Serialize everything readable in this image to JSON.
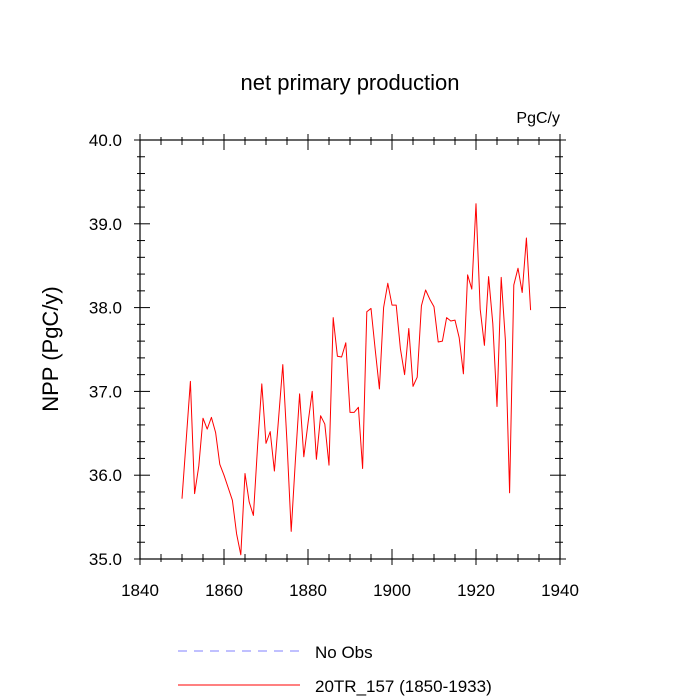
{
  "chart_data": {
    "type": "line",
    "title": "net primary production",
    "units_label": "PgC/y",
    "ylabel": "NPP  (PgC/y)",
    "xlabel": "",
    "xlim": [
      1840,
      1940
    ],
    "ylim": [
      35.0,
      40.0
    ],
    "x_ticks": [
      1840,
      1860,
      1880,
      1900,
      1920,
      1940
    ],
    "x_tick_labels": [
      "1840",
      "1860",
      "1880",
      "1900",
      "1920",
      "1940"
    ],
    "y_ticks": [
      35.0,
      36.0,
      37.0,
      38.0,
      39.0,
      40.0
    ],
    "y_tick_labels": [
      "35.0",
      "36.0",
      "37.0",
      "38.0",
      "39.0",
      "40.0"
    ],
    "legend": [
      {
        "label": "No Obs",
        "color": "#8080ff",
        "style": "dashed"
      },
      {
        "label": "20TR_157 (1850-1933)",
        "color": "#ff0000",
        "style": "solid"
      }
    ],
    "series": [
      {
        "name": "20TR_157 (1850-1933)",
        "color": "#ff0000",
        "x": [
          1850,
          1851,
          1852,
          1853,
          1854,
          1855,
          1856,
          1857,
          1858,
          1859,
          1860,
          1861,
          1862,
          1863,
          1864,
          1865,
          1866,
          1867,
          1868,
          1869,
          1870,
          1871,
          1872,
          1873,
          1874,
          1875,
          1876,
          1877,
          1878,
          1879,
          1880,
          1881,
          1882,
          1883,
          1884,
          1885,
          1886,
          1887,
          1888,
          1889,
          1890,
          1891,
          1892,
          1893,
          1894,
          1895,
          1896,
          1897,
          1898,
          1899,
          1900,
          1901,
          1902,
          1903,
          1904,
          1905,
          1906,
          1907,
          1908,
          1909,
          1910,
          1911,
          1912,
          1913,
          1914,
          1915,
          1916,
          1917,
          1918,
          1919,
          1920,
          1921,
          1922,
          1923,
          1924,
          1925,
          1926,
          1927,
          1928,
          1929,
          1930,
          1931,
          1932,
          1933
        ],
        "values": [
          35.72,
          36.42,
          37.12,
          35.78,
          36.11,
          36.68,
          36.55,
          36.69,
          36.51,
          36.13,
          36.0,
          35.85,
          35.7,
          35.3,
          35.05,
          36.02,
          35.68,
          35.52,
          36.35,
          37.09,
          36.38,
          36.52,
          36.05,
          36.68,
          37.32,
          36.39,
          35.33,
          36.18,
          36.97,
          36.22,
          36.62,
          37.0,
          36.19,
          36.71,
          36.61,
          36.12,
          37.88,
          37.42,
          37.41,
          37.58,
          36.75,
          36.75,
          36.81,
          36.08,
          37.95,
          37.99,
          37.5,
          37.03,
          38.0,
          38.29,
          38.03,
          38.03,
          37.51,
          37.2,
          37.75,
          37.06,
          37.17,
          38.02,
          38.21,
          38.1,
          38.01,
          37.59,
          37.6,
          37.88,
          37.84,
          37.85,
          37.64,
          37.21,
          38.39,
          38.22,
          39.24,
          37.98,
          37.55,
          38.37,
          37.81,
          36.82,
          38.36,
          37.61,
          35.79,
          38.27,
          38.47,
          38.18,
          38.83,
          37.97
        ]
      }
    ]
  }
}
